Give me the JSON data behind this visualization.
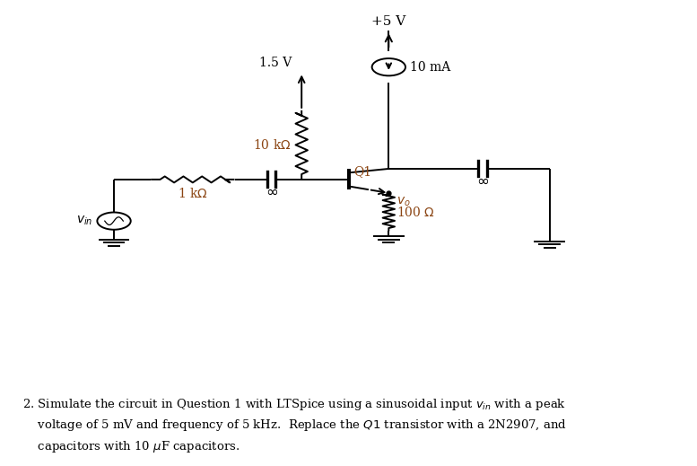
{
  "fig_width": 7.77,
  "fig_height": 5.19,
  "dpi": 100,
  "bg_color": "#ffffff",
  "line_color": "#000000",
  "text_color": "#000000",
  "label_color": "#8B4513",
  "lw": 1.4,
  "VCC_label": "+5 V",
  "V15_label": "1.5 V",
  "R10k_label": "10 k$\\Omega$",
  "R1k_label": "1 k$\\Omega$",
  "R100_label": "100 $\\Omega$",
  "I10mA_label": "10 mA",
  "Q1_label": "Q1",
  "vin_label": "$v_{in}$",
  "vo_label": "$v_o$",
  "inf_label": "$\\infty$",
  "bottom_text_line1": "2. Simulate the circuit in Question 1 with LTSpice using a sinusoidal input $v_{in}$ with a peak",
  "bottom_text_line2": "    voltage of 5 mV and frequency of 5 kHz.  Replace the $Q1$ transistor with a 2N2907, and",
  "bottom_text_line3": "    capacitors with 10 $\\mu$F capacitors."
}
